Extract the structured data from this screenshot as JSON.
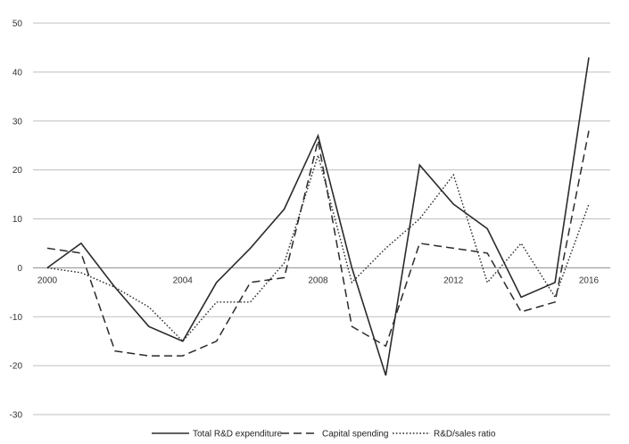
{
  "chart_data": {
    "type": "line",
    "x": [
      2000,
      2001,
      2002,
      2003,
      2004,
      2005,
      2006,
      2007,
      2008,
      2009,
      2010,
      2011,
      2012,
      2013,
      2014,
      2015,
      2016
    ],
    "x_tick_labels": [
      "2000",
      "2004",
      "2008",
      "2012",
      "2016"
    ],
    "y_tick_labels": [
      "50",
      "40",
      "30",
      "20",
      "10",
      "0",
      "-10",
      "-20",
      "-30"
    ],
    "ylim": [
      -30,
      50
    ],
    "grid": "horizontal",
    "legend_position": "bottom",
    "series": [
      {
        "name": "Total R&D expenditure",
        "style": "solid",
        "values": [
          0,
          5,
          -4,
          -12,
          -15,
          -3,
          4,
          12,
          27,
          0,
          -22,
          21,
          13,
          8,
          -6,
          -3,
          43
        ]
      },
      {
        "name": "Capital spending",
        "style": "dashed",
        "values": [
          4,
          3,
          -17,
          -18,
          -18,
          -15,
          -3,
          -2,
          26,
          -12,
          -16,
          5,
          4,
          3,
          -9,
          -7,
          28
        ]
      },
      {
        "name": "R&D/sales ratio",
        "style": "dotted",
        "values": [
          0,
          -1,
          -4,
          -8,
          -15,
          -7,
          -7,
          1,
          23,
          -3,
          4,
          10,
          19,
          -3,
          5,
          -6,
          13
        ]
      }
    ],
    "colors": {
      "line": "#2b2b2b",
      "grid": "#bfbfbf",
      "axis": "#8c8c8c"
    }
  }
}
